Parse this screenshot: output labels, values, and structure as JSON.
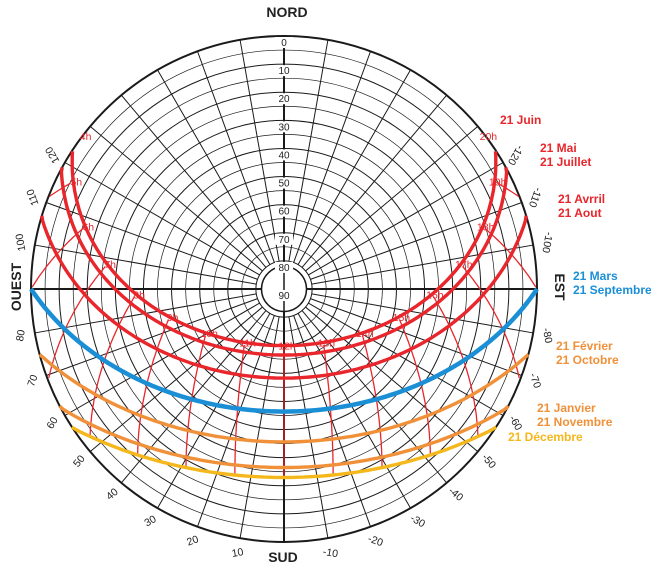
{
  "diagram": {
    "cardinals": {
      "north": "NORD",
      "south": "SUD",
      "east": "EST",
      "west": "OUEST"
    },
    "altitude_labels": [
      "0",
      "10",
      "20",
      "30",
      "40",
      "50",
      "60",
      "70",
      "80",
      "90"
    ],
    "azimuth_labels": [
      {
        "az": -120,
        "text": "-120"
      },
      {
        "az": -110,
        "text": "-110"
      },
      {
        "az": -100,
        "text": "-100"
      },
      {
        "az": -80,
        "text": "-80"
      },
      {
        "az": -70,
        "text": "-70"
      },
      {
        "az": -60,
        "text": "-60"
      },
      {
        "az": -50,
        "text": "-50"
      },
      {
        "az": -40,
        "text": "-40"
      },
      {
        "az": -30,
        "text": "-30"
      },
      {
        "az": -20,
        "text": "-20"
      },
      {
        "az": -10,
        "text": "-10"
      },
      {
        "az": 10,
        "text": "10"
      },
      {
        "az": 20,
        "text": "20"
      },
      {
        "az": 30,
        "text": "30"
      },
      {
        "az": 40,
        "text": "40"
      },
      {
        "az": 50,
        "text": "50"
      },
      {
        "az": 60,
        "text": "60"
      },
      {
        "az": 70,
        "text": "70"
      },
      {
        "az": 80,
        "text": "80"
      },
      {
        "az": 100,
        "text": "100"
      },
      {
        "az": 110,
        "text": "110"
      },
      {
        "az": 120,
        "text": "120"
      }
    ],
    "sun_paths": [
      {
        "lines": [
          "21 Juin"
        ],
        "color": "#e8262b",
        "declination": 23.44
      },
      {
        "lines": [
          "21 Mai",
          "21 Juillet"
        ],
        "color": "#e8262b",
        "declination": 20.1
      },
      {
        "lines": [
          "21 Avrril",
          "21 Aout"
        ],
        "color": "#e8262b",
        "declination": 11.9
      },
      {
        "lines": [
          "21 Mars",
          "21 Septembre"
        ],
        "color": "#1b8fd6",
        "declination": 0
      },
      {
        "lines": [
          "21 Février",
          "21 Octobre"
        ],
        "color": "#f0913a",
        "declination": -10.8
      },
      {
        "lines": [
          "21 Janvier",
          "21 Novembre"
        ],
        "color": "#f0913a",
        "declination": -19.9
      },
      {
        "lines": [
          "21 Décembre"
        ],
        "color": "#f5b81c",
        "declination": -23.44
      }
    ],
    "hour_labels": [
      "4h",
      "5h",
      "6h",
      "7h",
      "8h",
      "9h",
      "10h",
      "11h",
      "12h",
      "13h",
      "14h",
      "15h",
      "16h",
      "17h",
      "18h",
      "19h",
      "20h"
    ],
    "colors": {
      "grid": "#1a1a1a",
      "hour_lines": "#e8262b",
      "text": "#222222"
    }
  }
}
